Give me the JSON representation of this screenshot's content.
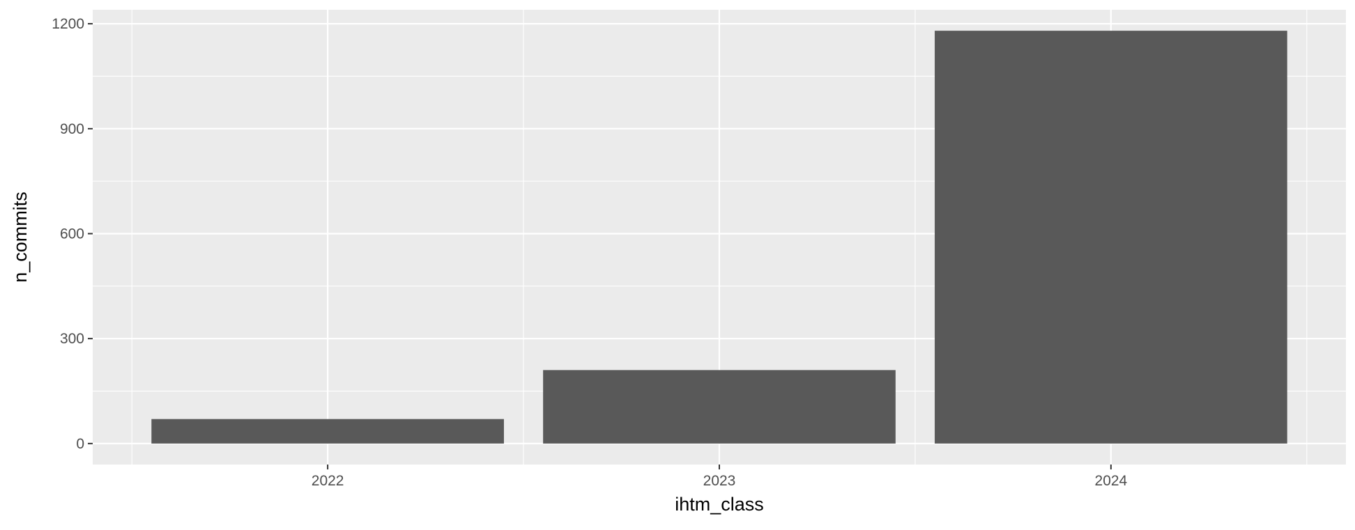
{
  "chart_data": {
    "type": "bar",
    "title": "",
    "xlabel": "ihtm_class",
    "ylabel": "n_commits",
    "categories": [
      "2022",
      "2023",
      "2024"
    ],
    "values": [
      70,
      210,
      1180
    ],
    "ylim": [
      -60,
      1240
    ],
    "yticks": [
      0,
      300,
      600,
      900,
      1200
    ],
    "grid": true,
    "legend": "none",
    "colors": {
      "panel": "#EBEBEB",
      "grid": "#FFFFFF",
      "bar": "#595959",
      "tick": "#333333",
      "tick_label": "#4D4D4D",
      "axis_title": "#000000"
    }
  }
}
